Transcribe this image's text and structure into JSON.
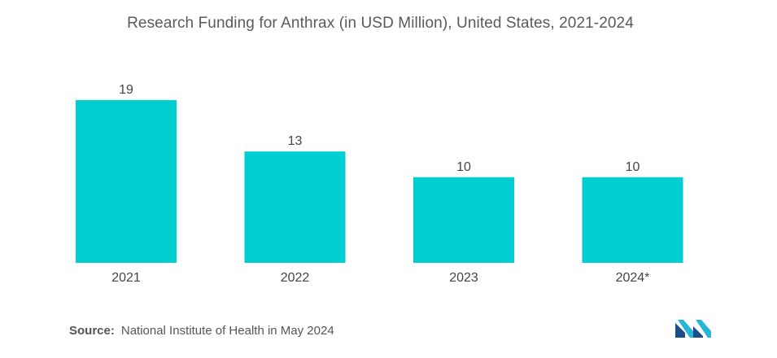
{
  "chart_data": {
    "type": "bar",
    "title": "Research Funding for Anthrax (in USD Million), United States, 2021-2024",
    "categories": [
      "2021",
      "2022",
      "2023",
      "2024*"
    ],
    "values": [
      19,
      13,
      10,
      10
    ],
    "xlabel": "",
    "ylabel": "",
    "ylim": [
      0,
      21
    ],
    "grid": false,
    "legend": "none",
    "bar_color": "#00CED1"
  },
  "source": {
    "label": "Source:",
    "text": "National Institute of Health in May 2024"
  },
  "logo": {
    "icon": "mordor-intelligence-logo",
    "colors": [
      "#1A4F8C",
      "#27B6D8"
    ]
  }
}
